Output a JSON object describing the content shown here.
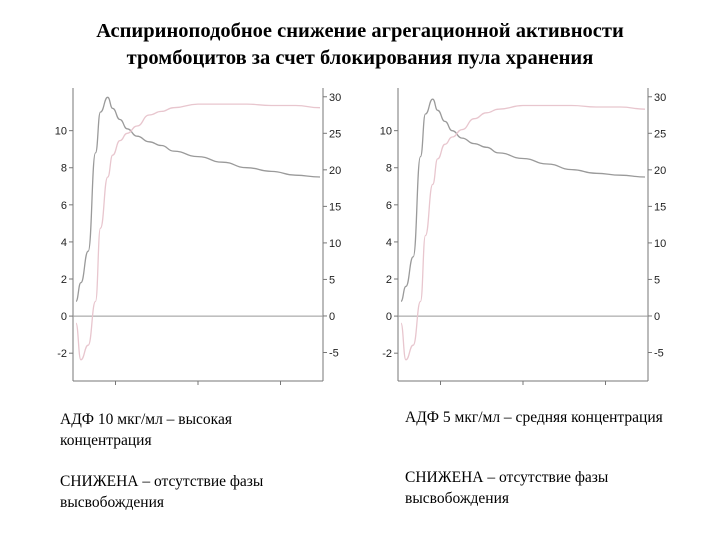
{
  "title": {
    "line1": "Аспириноподобное снижение агрегационной активности",
    "line2": "тромбоцитов за счет блокирования пула хранения"
  },
  "colors": {
    "aggregation": "#9a9a9a",
    "release": "#e8c6ce",
    "axis": "#777777"
  },
  "chart_data": [
    {
      "type": "line",
      "left_axis": {
        "ticks": [
          -2,
          0,
          2,
          4,
          6,
          8,
          10
        ],
        "ylim": [
          -3.5,
          12.3
        ]
      },
      "right_axis": {
        "ticks": [
          -5,
          0,
          5,
          10,
          15,
          20,
          25,
          30
        ],
        "ylim": [
          -8.9,
          31.2
        ]
      },
      "x": [
        0,
        2,
        5,
        8,
        10,
        13,
        15,
        18,
        21,
        25,
        30,
        35,
        40,
        50,
        60,
        70,
        80,
        90,
        100
      ],
      "series": [
        {
          "axis": "left",
          "values": [
            0.8,
            1.8,
            3.5,
            8.8,
            11.0,
            11.8,
            11.2,
            10.6,
            10.1,
            9.7,
            9.4,
            9.2,
            8.9,
            8.6,
            8.3,
            8.0,
            7.8,
            7.6,
            7.5
          ]
        },
        {
          "axis": "right",
          "values": [
            -1,
            -6,
            -4,
            2,
            12,
            19,
            22,
            24,
            25,
            26,
            27.5,
            28,
            28.5,
            29,
            29,
            29,
            28.8,
            28.8,
            28.5
          ]
        }
      ],
      "caption": {
        "line1": "АДФ 10 мкг/мл – высокая концентрация",
        "line2": "СНИЖЕНА – отсутствие фазы высвобождения"
      }
    },
    {
      "type": "line",
      "left_axis": {
        "ticks": [
          -2,
          0,
          2,
          4,
          6,
          8,
          10
        ],
        "ylim": [
          -3.5,
          12.3
        ]
      },
      "right_axis": {
        "ticks": [
          -5,
          0,
          5,
          10,
          15,
          20,
          25,
          30
        ],
        "ylim": [
          -8.9,
          31.2
        ]
      },
      "x": [
        0,
        2,
        5,
        8,
        10,
        13,
        15,
        18,
        21,
        25,
        30,
        35,
        40,
        50,
        60,
        70,
        80,
        90,
        100
      ],
      "series": [
        {
          "axis": "left",
          "values": [
            0.8,
            1.6,
            3.2,
            8.6,
            10.9,
            11.7,
            11.1,
            10.5,
            10.0,
            9.6,
            9.3,
            9.1,
            8.8,
            8.5,
            8.2,
            7.9,
            7.7,
            7.6,
            7.5
          ]
        },
        {
          "axis": "right",
          "values": [
            -1,
            -6,
            -4,
            2,
            11,
            18,
            21.5,
            23.5,
            24.5,
            25.5,
            27,
            27.8,
            28.3,
            28.8,
            28.8,
            28.8,
            28.6,
            28.6,
            28.3
          ]
        }
      ],
      "caption": {
        "line1": "АДФ 5 мкг/мл – средняя концентрация",
        "line2": "СНИЖЕНА – отсутствие фазы высвобождения"
      }
    }
  ]
}
